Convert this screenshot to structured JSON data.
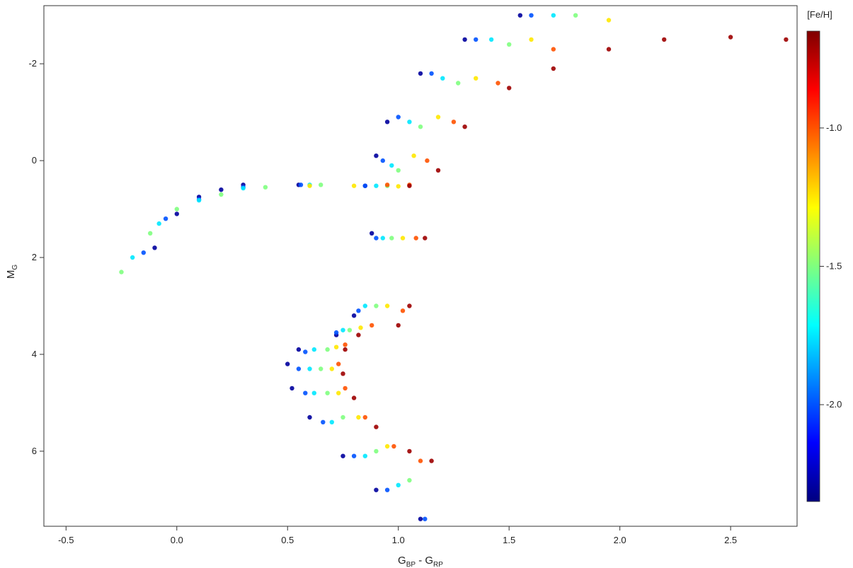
{
  "chart_data": {
    "type": "scatter",
    "title": "",
    "xlabel": {
      "main": "G",
      "sub1": "BP",
      "mid": " - G",
      "sub2": "RP"
    },
    "ylabel": {
      "main": "M",
      "sub": "G"
    },
    "xlim": [
      -0.6,
      2.8
    ],
    "ylim": [
      7.55,
      -3.2
    ],
    "y_inverted": true,
    "x_ticks": [
      -0.5,
      0.0,
      0.5,
      1.0,
      1.5,
      2.0,
      2.5
    ],
    "x_tick_labels": [
      "-0.5",
      "0.0",
      "0.5",
      "1.0",
      "1.5",
      "2.0",
      "2.5"
    ],
    "y_ticks": [
      -2,
      0,
      2,
      4,
      6
    ],
    "y_tick_labels": [
      "-2",
      "0",
      "2",
      "4",
      "6"
    ],
    "grid": false,
    "colorbar": {
      "label": "[Fe/H]",
      "range": [
        -2.35,
        -0.65
      ],
      "ticks": [
        -1.0,
        -1.5,
        -2.0
      ],
      "tick_labels": [
        "-1.0",
        "-1.5",
        "-2.0"
      ],
      "colormap": "jet"
    },
    "colormap_stops": [
      "#00007f",
      "#0000ff",
      "#007fff",
      "#00ffff",
      "#7fff7f",
      "#ffff00",
      "#ff7f00",
      "#ff0000",
      "#7f0000"
    ],
    "series": [
      {
        "feh": -2.3,
        "points": [
          [
            -0.1,
            1.8
          ],
          [
            0.0,
            1.1
          ],
          [
            0.1,
            0.75
          ],
          [
            0.2,
            0.6
          ],
          [
            0.3,
            0.5
          ],
          [
            0.55,
            0.5
          ],
          [
            0.85,
            0.52
          ],
          [
            0.88,
            1.5
          ],
          [
            0.8,
            3.2
          ],
          [
            0.72,
            3.6
          ],
          [
            0.55,
            3.9
          ],
          [
            0.5,
            4.2
          ],
          [
            0.52,
            4.7
          ],
          [
            0.6,
            5.3
          ],
          [
            0.75,
            6.1
          ],
          [
            0.9,
            6.8
          ],
          [
            1.1,
            7.4
          ],
          [
            0.9,
            -0.1
          ],
          [
            0.95,
            -0.8
          ],
          [
            1.1,
            -1.8
          ],
          [
            1.3,
            -2.5
          ],
          [
            1.55,
            -3.0
          ]
        ]
      },
      {
        "feh": -2.0,
        "points": [
          [
            -0.15,
            1.9
          ],
          [
            -0.05,
            1.2
          ],
          [
            0.1,
            0.8
          ],
          [
            0.3,
            0.55
          ],
          [
            0.56,
            0.5
          ],
          [
            0.85,
            0.52
          ],
          [
            0.9,
            1.6
          ],
          [
            0.82,
            3.1
          ],
          [
            0.72,
            3.55
          ],
          [
            0.58,
            3.95
          ],
          [
            0.55,
            4.3
          ],
          [
            0.58,
            4.8
          ],
          [
            0.66,
            5.4
          ],
          [
            0.8,
            6.1
          ],
          [
            0.95,
            6.8
          ],
          [
            1.12,
            7.4
          ],
          [
            0.93,
            0.0
          ],
          [
            1.0,
            -0.9
          ],
          [
            1.15,
            -1.8
          ],
          [
            1.35,
            -2.5
          ],
          [
            1.6,
            -3.0
          ]
        ]
      },
      {
        "feh": -1.75,
        "points": [
          [
            -0.2,
            2.0
          ],
          [
            -0.08,
            1.3
          ],
          [
            0.1,
            0.82
          ],
          [
            0.3,
            0.57
          ],
          [
            0.6,
            0.5
          ],
          [
            0.9,
            0.52
          ],
          [
            0.93,
            1.6
          ],
          [
            0.85,
            3.0
          ],
          [
            0.75,
            3.5
          ],
          [
            0.62,
            3.9
          ],
          [
            0.6,
            4.3
          ],
          [
            0.62,
            4.8
          ],
          [
            0.7,
            5.4
          ],
          [
            0.85,
            6.1
          ],
          [
            1.0,
            6.7
          ],
          [
            0.97,
            0.1
          ],
          [
            1.05,
            -0.8
          ],
          [
            1.2,
            -1.7
          ],
          [
            1.42,
            -2.5
          ],
          [
            1.7,
            -3.0
          ]
        ]
      },
      {
        "feh": -1.5,
        "points": [
          [
            -0.25,
            2.3
          ],
          [
            -0.12,
            1.5
          ],
          [
            0.0,
            1.0
          ],
          [
            0.2,
            0.7
          ],
          [
            0.4,
            0.55
          ],
          [
            0.65,
            0.5
          ],
          [
            0.95,
            0.52
          ],
          [
            0.97,
            1.6
          ],
          [
            0.9,
            3.0
          ],
          [
            0.78,
            3.5
          ],
          [
            0.68,
            3.9
          ],
          [
            0.65,
            4.3
          ],
          [
            0.68,
            4.8
          ],
          [
            0.75,
            5.3
          ],
          [
            0.9,
            6.0
          ],
          [
            1.05,
            6.6
          ],
          [
            1.0,
            0.2
          ],
          [
            1.1,
            -0.7
          ],
          [
            1.27,
            -1.6
          ],
          [
            1.5,
            -2.4
          ],
          [
            1.8,
            -3.0
          ]
        ]
      },
      {
        "feh": -1.25,
        "points": [
          [
            0.6,
            0.52
          ],
          [
            0.8,
            0.52
          ],
          [
            1.0,
            0.53
          ],
          [
            1.02,
            1.6
          ],
          [
            0.95,
            3.0
          ],
          [
            0.83,
            3.45
          ],
          [
            0.72,
            3.85
          ],
          [
            0.7,
            4.3
          ],
          [
            0.73,
            4.8
          ],
          [
            0.82,
            5.3
          ],
          [
            0.95,
            5.9
          ],
          [
            1.07,
            -0.1
          ],
          [
            1.18,
            -0.9
          ],
          [
            1.35,
            -1.7
          ],
          [
            1.6,
            -2.5
          ],
          [
            1.95,
            -2.9
          ]
        ]
      },
      {
        "feh": -1.0,
        "points": [
          [
            0.95,
            0.5
          ],
          [
            1.05,
            0.5
          ],
          [
            1.08,
            1.6
          ],
          [
            1.02,
            3.1
          ],
          [
            0.88,
            3.4
          ],
          [
            0.76,
            3.8
          ],
          [
            0.73,
            4.2
          ],
          [
            0.76,
            4.7
          ],
          [
            0.85,
            5.3
          ],
          [
            0.98,
            5.9
          ],
          [
            1.1,
            6.2
          ],
          [
            1.13,
            0.0
          ],
          [
            1.25,
            -0.8
          ],
          [
            1.45,
            -1.6
          ],
          [
            1.7,
            -2.3
          ]
        ]
      },
      {
        "feh": -0.7,
        "points": [
          [
            1.05,
            0.52
          ],
          [
            1.12,
            1.6
          ],
          [
            1.05,
            3.0
          ],
          [
            1.0,
            3.4
          ],
          [
            0.82,
            3.6
          ],
          [
            0.76,
            3.9
          ],
          [
            0.75,
            4.4
          ],
          [
            0.8,
            4.9
          ],
          [
            0.9,
            5.5
          ],
          [
            1.05,
            6.0
          ],
          [
            1.15,
            6.2
          ],
          [
            1.18,
            0.2
          ],
          [
            1.3,
            -0.7
          ],
          [
            1.5,
            -1.5
          ],
          [
            1.7,
            -1.9
          ],
          [
            1.95,
            -2.3
          ],
          [
            2.2,
            -2.5
          ],
          [
            2.5,
            -2.55
          ],
          [
            2.75,
            -2.5
          ]
        ]
      }
    ]
  }
}
